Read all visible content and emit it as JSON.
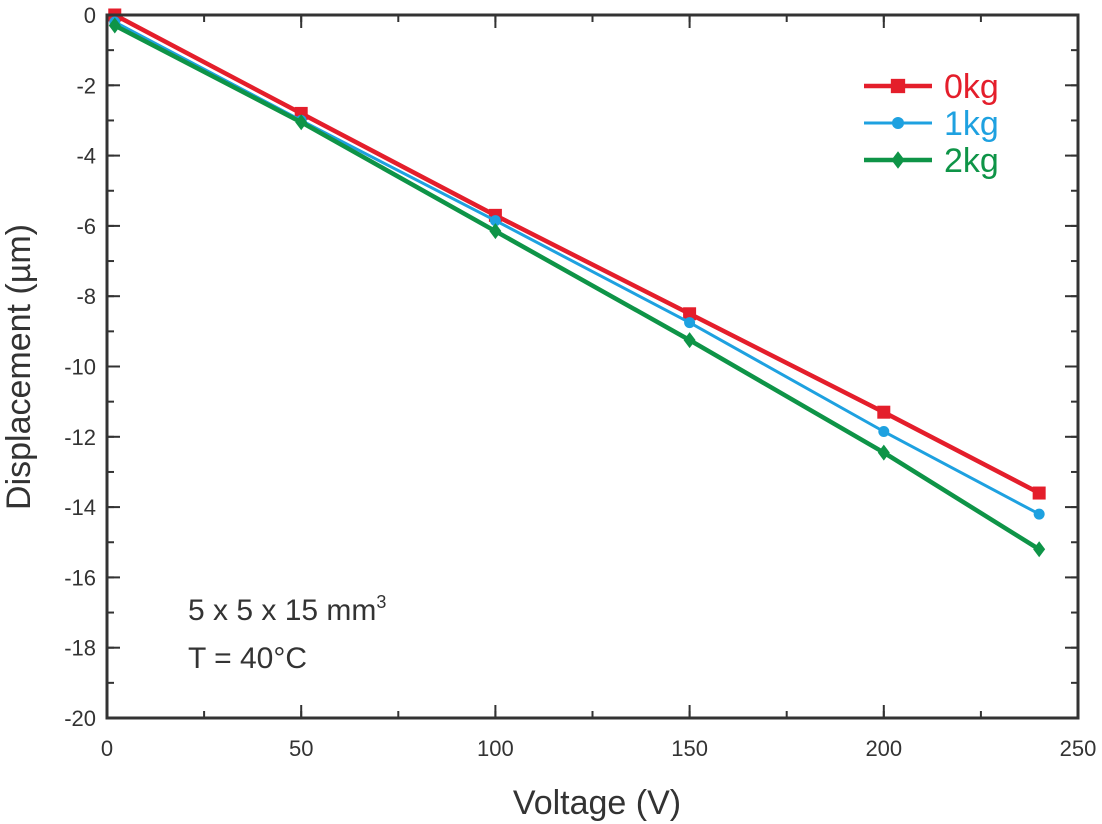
{
  "chart_data": {
    "type": "line",
    "xlabel": "Voltage (V)",
    "ylabel": "Displacement (µm)",
    "xlim": [
      0,
      250
    ],
    "ylim": [
      -20,
      0
    ],
    "xticks": [
      0,
      50,
      100,
      150,
      200,
      250
    ],
    "yticks": [
      0,
      -2,
      -4,
      -6,
      -8,
      -10,
      -12,
      -14,
      -16,
      -18,
      -20
    ],
    "x_minor_step": 25,
    "y_minor_step": 1,
    "grid": false,
    "legend_position": "top-right",
    "series": [
      {
        "name": "0kg",
        "color": "#e41e2b",
        "marker": "square",
        "x": [
          2,
          50,
          100,
          150,
          200,
          240
        ],
        "y": [
          0.0,
          -2.8,
          -5.7,
          -8.5,
          -11.3,
          -13.6
        ]
      },
      {
        "name": "1kg",
        "color": "#1ea1e0",
        "marker": "circle",
        "x": [
          2,
          50,
          100,
          150,
          200,
          240
        ],
        "y": [
          -0.2,
          -3.0,
          -5.85,
          -8.75,
          -11.85,
          -14.2
        ]
      },
      {
        "name": "2kg",
        "color": "#0e9447",
        "marker": "diamond",
        "x": [
          2,
          50,
          100,
          150,
          200,
          240
        ],
        "y": [
          -0.3,
          -3.05,
          -6.15,
          -9.25,
          -12.45,
          -15.2
        ]
      }
    ],
    "annotations": {
      "size_main": "5 x 5 x 15 mm",
      "size_sup": "3",
      "temperature": "T = 40°C"
    }
  }
}
